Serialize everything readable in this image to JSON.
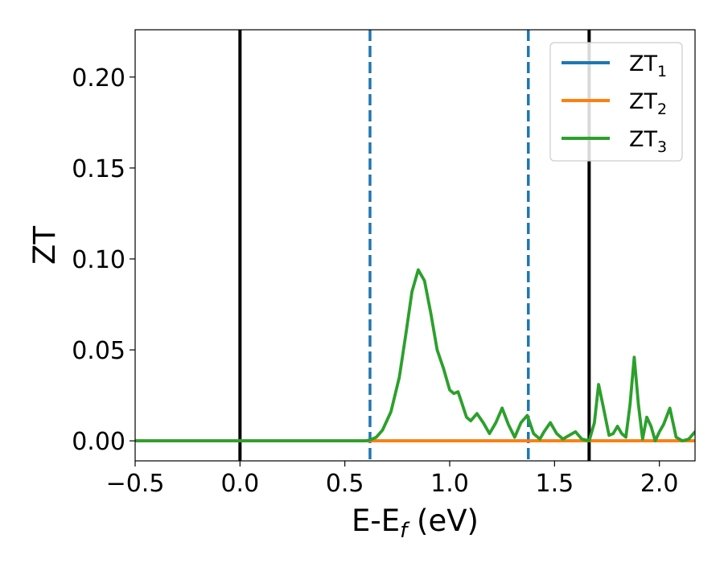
{
  "chart_data": {
    "type": "line",
    "title": "",
    "xlabel": {
      "main": "E-E",
      "sub": "f",
      "suffix": " (eV)"
    },
    "ylabel": "ZT",
    "xlim": [
      -0.5,
      2.17
    ],
    "ylim": [
      -0.011,
      0.226
    ],
    "xticks": [
      -0.5,
      0.0,
      0.5,
      1.0,
      1.5,
      2.0
    ],
    "xtick_labels": [
      "−0.5",
      "0.0",
      "0.5",
      "1.0",
      "1.5",
      "2.0"
    ],
    "yticks": [
      0.0,
      0.05,
      0.1,
      0.15,
      0.2
    ],
    "ytick_labels": [
      "0.00",
      "0.05",
      "0.10",
      "0.15",
      "0.20"
    ],
    "grid": false,
    "legend_position": "top-right",
    "vlines": [
      {
        "x": 0.0,
        "style": "solid",
        "color": "#000000"
      },
      {
        "x": 1.665,
        "style": "solid",
        "color": "#000000"
      },
      {
        "x": 0.62,
        "style": "dashed",
        "color": "#1f77b4"
      },
      {
        "x": 1.375,
        "style": "dashed",
        "color": "#1f77b4"
      }
    ],
    "series": [
      {
        "name": "ZT",
        "sub": "1",
        "color": "#1f77b4",
        "x": [
          -0.5,
          2.17
        ],
        "y": [
          0.0,
          0.0
        ]
      },
      {
        "name": "ZT",
        "sub": "2",
        "color": "#ff7f0e",
        "x": [
          -0.5,
          2.17
        ],
        "y": [
          0.0,
          0.0
        ]
      },
      {
        "name": "ZT",
        "sub": "3",
        "color": "#2ca02c",
        "x": [
          -0.5,
          0.5,
          0.6,
          0.62,
          0.65,
          0.68,
          0.72,
          0.76,
          0.79,
          0.82,
          0.85,
          0.88,
          0.91,
          0.94,
          0.97,
          1.0,
          1.02,
          1.04,
          1.06,
          1.08,
          1.1,
          1.13,
          1.16,
          1.19,
          1.22,
          1.25,
          1.28,
          1.31,
          1.34,
          1.37,
          1.4,
          1.43,
          1.45,
          1.48,
          1.51,
          1.54,
          1.57,
          1.6,
          1.63,
          1.665,
          1.69,
          1.71,
          1.73,
          1.76,
          1.78,
          1.8,
          1.82,
          1.84,
          1.86,
          1.88,
          1.9,
          1.92,
          1.94,
          1.96,
          1.98,
          2.0,
          2.02,
          2.05,
          2.08,
          2.11,
          2.14,
          2.17
        ],
        "y": [
          0.0,
          0.0,
          0.0,
          0.0005,
          0.002,
          0.006,
          0.016,
          0.035,
          0.058,
          0.082,
          0.094,
          0.088,
          0.07,
          0.05,
          0.04,
          0.028,
          0.026,
          0.027,
          0.02,
          0.013,
          0.011,
          0.015,
          0.01,
          0.004,
          0.01,
          0.018,
          0.009,
          0.002,
          0.01,
          0.014,
          0.004,
          0.001,
          0.005,
          0.01,
          0.004,
          0.001,
          0.003,
          0.005,
          0.001,
          0.0,
          0.01,
          0.031,
          0.02,
          0.003,
          0.004,
          0.008,
          0.004,
          0.002,
          0.02,
          0.046,
          0.02,
          0.001,
          0.013,
          0.008,
          0.0,
          0.005,
          0.009,
          0.018,
          0.002,
          0.0,
          0.001,
          0.005
        ]
      }
    ]
  }
}
